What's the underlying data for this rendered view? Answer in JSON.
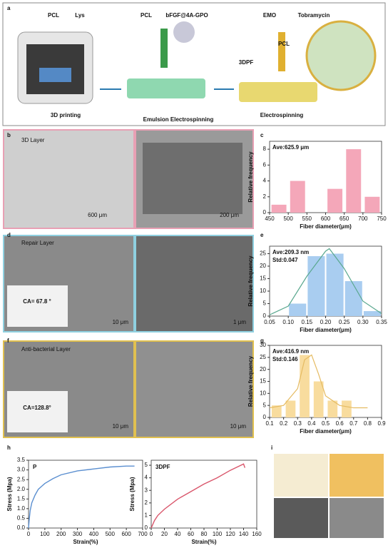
{
  "panel_labels": [
    "a",
    "b",
    "c",
    "d",
    "e",
    "f",
    "g",
    "h",
    "i"
  ],
  "figure_texts": [
    "PCL",
    "Lys",
    "PCL",
    "bFGF@4A-GPO",
    "EMO",
    "Tobramycin",
    "PCL",
    "3DPF",
    "3D printing",
    "Emulsion Electrospinning",
    "Electrospinning",
    "3D Layer",
    "600 μm",
    "200 μm",
    "Repair Layer",
    "CA= 67.8 °",
    "10 μm",
    "1 μm",
    "Anti-bacterial Layer",
    "CA=128.8°",
    "10 μm",
    "10 μm"
  ],
  "chart_data": [
    {
      "type": "bar",
      "xlabel": "Fiber diameter(μm)",
      "ylabel": "Relative frequency",
      "annotations": [
        "Ave:625.9 μm"
      ],
      "x": [
        475,
        525,
        625,
        675,
        725
      ],
      "values": [
        1,
        4,
        3,
        8,
        2
      ],
      "color": "#f4a7b9",
      "xlim": [
        450,
        750
      ],
      "xticks": [
        450,
        500,
        550,
        600,
        650,
        700,
        750
      ],
      "ylim": [
        0,
        9
      ],
      "yticks": [
        0,
        2,
        4,
        6,
        8
      ]
    },
    {
      "type": "bar",
      "xlabel": "Fiber diameter(μm)",
      "ylabel": "Relative frequency",
      "annotations": [
        "Ave:209.3 nm",
        "Std:0.047"
      ],
      "x": [
        0.125,
        0.175,
        0.225,
        0.275,
        0.325
      ],
      "values": [
        5,
        24,
        25,
        14,
        2
      ],
      "color": "#a9cdf0",
      "curve": {
        "x": [
          0.05,
          0.1,
          0.15,
          0.2,
          0.21,
          0.25,
          0.3,
          0.35
        ],
        "values": [
          0.5,
          4,
          16,
          26,
          27,
          19,
          6,
          1
        ],
        "color": "#5aa88f"
      },
      "xlim": [
        0.05,
        0.35
      ],
      "xticks": [
        0.05,
        {
          "value": 0.1,
          "label": "0.10"
        },
        0.15,
        {
          "value": 0.2,
          "label": "0.20"
        },
        0.25,
        {
          "value": 0.3,
          "label": "0.30"
        },
        0.35
      ],
      "ylim": [
        0,
        28
      ],
      "yticks": [
        0,
        5,
        10,
        15,
        20,
        25
      ]
    },
    {
      "type": "bar",
      "xlabel": "Fiber diameter(μm)",
      "ylabel": "Relative frequency",
      "annotations": [
        "Ave:416.9 nm",
        "Std:0.146"
      ],
      "x": [
        0.15,
        0.25,
        0.35,
        0.45,
        0.55,
        0.65
      ],
      "values": [
        5,
        7,
        26,
        15,
        7,
        7
      ],
      "color": "#f8dc9e",
      "curve": {
        "x": [
          0.1,
          0.2,
          0.3,
          0.35,
          0.4,
          0.45,
          0.5,
          0.6,
          0.7,
          0.8
        ],
        "values": [
          4,
          5,
          12,
          24,
          26,
          18,
          9,
          5,
          4,
          4
        ],
        "color": "#e5bb62"
      },
      "xlim": [
        0.1,
        0.9
      ],
      "xticks": [
        0.1,
        0.2,
        0.3,
        0.4,
        0.5,
        0.6,
        0.7,
        0.8,
        0.9
      ],
      "ylim": [
        0,
        30
      ],
      "yticks": [
        0,
        5,
        10,
        15,
        20,
        25,
        30
      ]
    },
    {
      "type": "line",
      "title": "P",
      "xlabel": "Strain(%)",
      "ylabel": "Stress (Mpa)",
      "color": "#5b8fd0",
      "x": [
        0,
        5,
        10,
        20,
        40,
        60,
        80,
        100,
        150,
        200,
        300,
        400,
        500,
        600,
        650
      ],
      "values": [
        0,
        0.5,
        0.9,
        1.3,
        1.7,
        2.0,
        2.15,
        2.3,
        2.55,
        2.75,
        2.95,
        3.05,
        3.15,
        3.2,
        3.2
      ],
      "xlim": [
        0,
        700
      ],
      "xticks": [
        0,
        100,
        200,
        300,
        400,
        500,
        600,
        700
      ],
      "ylim": [
        0,
        3.5
      ],
      "yticks": [
        {
          "value": 0,
          "label": "0.0"
        },
        0.5,
        {
          "value": 1,
          "label": "1.0"
        },
        1.5,
        {
          "value": 2,
          "label": "2.0"
        },
        2.5,
        {
          "value": 3,
          "label": "3.0"
        },
        3.5
      ]
    },
    {
      "type": "line",
      "title": "3DPF",
      "xlabel": "Strain(%)",
      "ylabel": "Stress (Mpa)",
      "color": "#d9566b",
      "x": [
        0,
        5,
        10,
        20,
        40,
        60,
        80,
        100,
        120,
        140,
        142
      ],
      "values": [
        0,
        0.6,
        1.0,
        1.5,
        2.3,
        2.9,
        3.5,
        4.0,
        4.6,
        5.1,
        4.8
      ],
      "xlim": [
        0,
        160
      ],
      "xticks": [
        0,
        20,
        40,
        60,
        80,
        100,
        120,
        140,
        160
      ],
      "ylim": [
        0,
        5.4
      ],
      "yticks": [
        0,
        1,
        2,
        3,
        4,
        5
      ]
    }
  ]
}
